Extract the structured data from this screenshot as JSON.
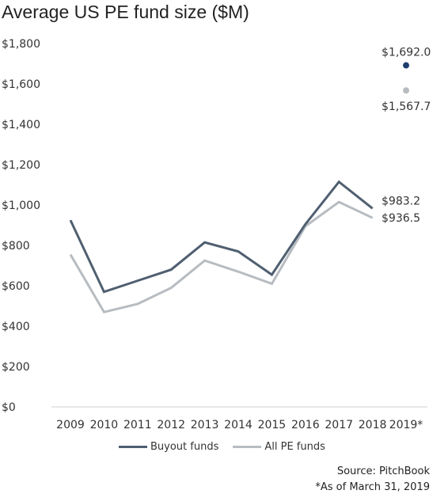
{
  "chart_data": {
    "type": "line",
    "title": "Average US PE fund size ($M)",
    "categories": [
      "2009",
      "2010",
      "2011",
      "2012",
      "2013",
      "2014",
      "2015",
      "2016",
      "2017",
      "2018",
      "2019*"
    ],
    "ylim": [
      0,
      1800
    ],
    "yticks": [
      0,
      200,
      400,
      600,
      800,
      1000,
      1200,
      1400,
      1600,
      1800
    ],
    "ytick_labels": [
      "$0",
      "$200",
      "$400",
      "$600",
      "$800",
      "$1,000",
      "$1,200",
      "$1,400",
      "$1,600",
      "$1,800"
    ],
    "grid": false,
    "legend_position": "bottom",
    "series": [
      {
        "name": "Buyout funds",
        "color": "#4f5f70",
        "values": [
          925,
          570,
          625,
          680,
          815,
          770,
          655,
          905,
          1115,
          983.2,
          1692.0
        ],
        "annotations": [
          {
            "index": 9,
            "text": "$983.2"
          },
          {
            "index": 10,
            "text": "$1,692.0",
            "marker_color": "#1e3f6d"
          }
        ]
      },
      {
        "name": "All PE funds",
        "color": "#b7bcc1",
        "values": [
          755,
          470,
          510,
          590,
          725,
          670,
          610,
          895,
          1015,
          936.5,
          1567.7
        ],
        "annotations": [
          {
            "index": 9,
            "text": "$936.5"
          },
          {
            "index": 10,
            "text": "$1,567.7",
            "marker_color": "#b7bcc1"
          }
        ]
      }
    ]
  },
  "source": "Source: PitchBook",
  "footnote": "*As of March 31, 2019"
}
